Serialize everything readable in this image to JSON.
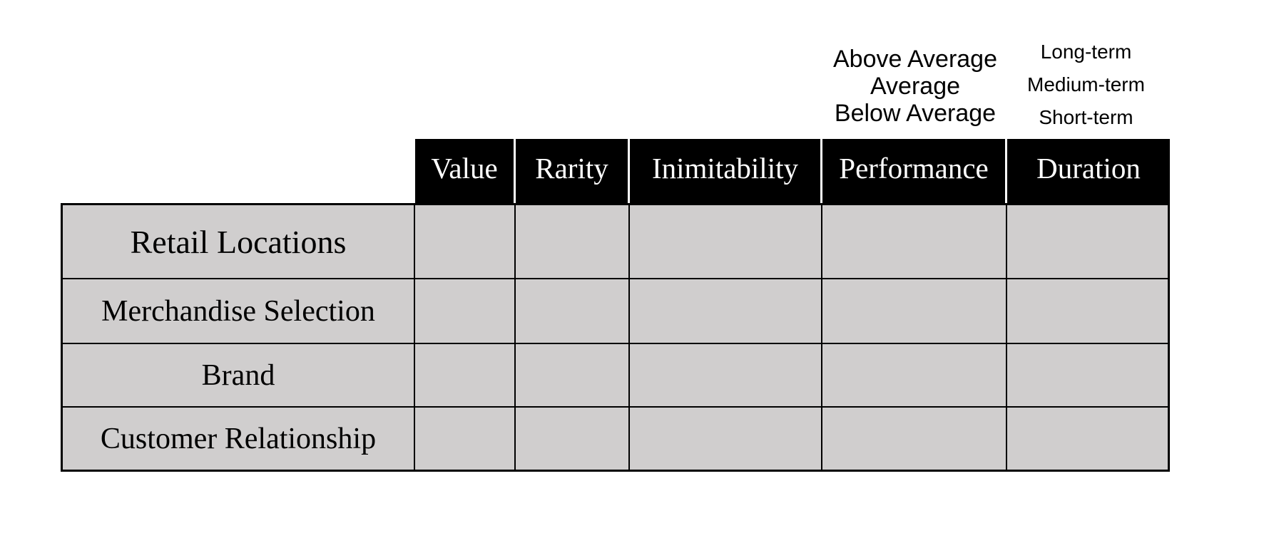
{
  "colors": {
    "header_bg": "#000000",
    "header_text": "#ffffff",
    "cell_bg": "#d0cece",
    "grid_border": "#000000",
    "legend_text": "#000000"
  },
  "legend": {
    "performance_levels": [
      "Above Average",
      "Average",
      "Below Average"
    ],
    "duration_levels": [
      "Long-term",
      "Medium-term",
      "Short-term"
    ]
  },
  "chart_data": {
    "type": "table",
    "columns": [
      "Value",
      "Rarity",
      "Inimitability",
      "Performance",
      "Duration"
    ],
    "row_labels": [
      "Retail Locations",
      "Merchandise Selection",
      "Brand",
      "Customer Relationship"
    ],
    "cell_values": [
      [
        "",
        "",
        "",
        "",
        ""
      ],
      [
        "",
        "",
        "",
        "",
        ""
      ],
      [
        "",
        "",
        "",
        "",
        ""
      ],
      [
        "",
        "",
        "",
        "",
        ""
      ]
    ],
    "annotations": {
      "performance_scale_above_header": [
        "Above Average",
        "Average",
        "Below Average"
      ],
      "duration_scale_above_header": [
        "Long-term",
        "Medium-term",
        "Short-term"
      ]
    },
    "layout_hints": {
      "header_style": "black background, white serif text",
      "body_style": "light gray cells, black gridlines, empty data cells",
      "legend_position": "above Performance and Duration columns"
    }
  }
}
